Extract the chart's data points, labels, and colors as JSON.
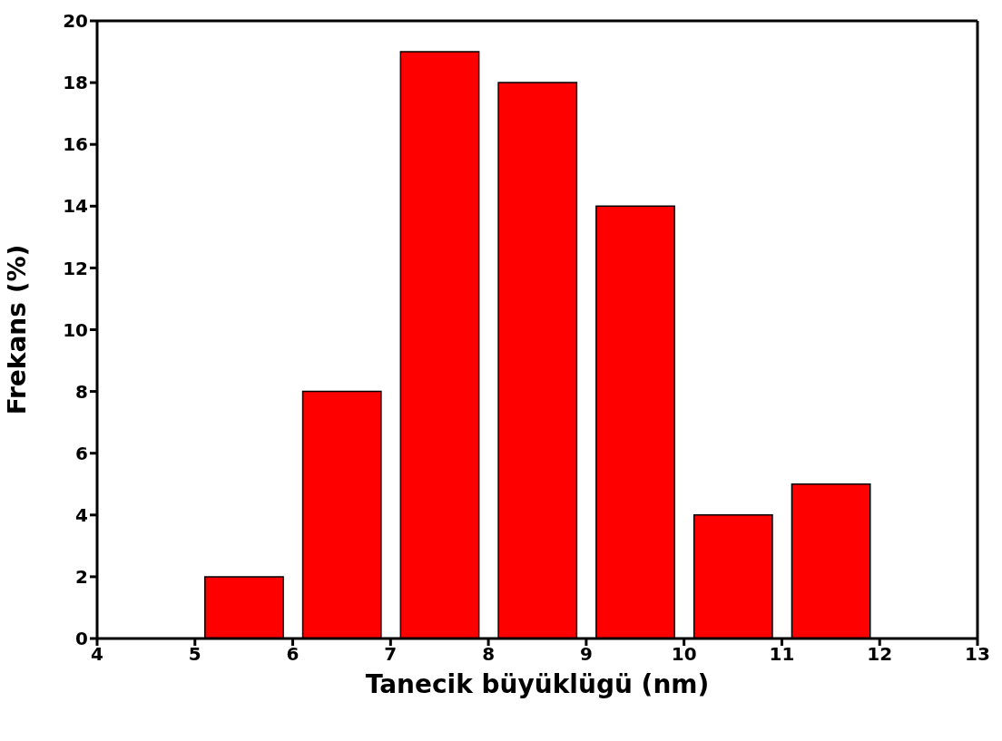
{
  "chart_data": {
    "type": "histogram",
    "xlabel": "Tanecik büyüklügü (nm)",
    "ylabel": "Frekans (%)",
    "bins": [
      5,
      6,
      7,
      8,
      9,
      10,
      11,
      12
    ],
    "values": [
      2,
      8,
      19,
      18,
      14,
      4,
      5
    ],
    "color": "#ff0000",
    "xlim": [
      4,
      13
    ],
    "xticks": [
      4,
      5,
      6,
      7,
      8,
      9,
      10,
      11,
      12,
      13
    ],
    "ylim": [
      0,
      20
    ],
    "yticks": [
      0,
      2,
      4,
      6,
      8,
      10,
      12,
      14,
      16,
      18,
      20
    ],
    "grid": false,
    "legend": false
  }
}
